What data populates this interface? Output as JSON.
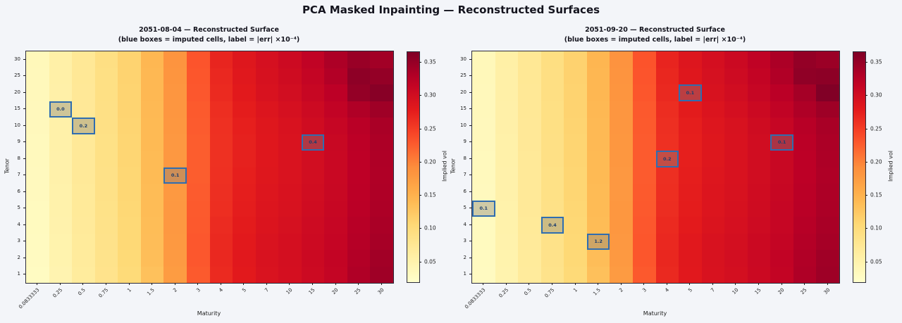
{
  "suptitle": "PCA Masked Inpainting — Reconstructed Surfaces",
  "colorbar": {
    "label": "Implied vol",
    "ticks": [
      "0.05",
      "0.10",
      "0.15",
      "0.20",
      "0.25",
      "0.30",
      "0.35"
    ],
    "vmin": 0.02,
    "vmax": 0.366
  },
  "styles": {
    "background": "#f3f5f9",
    "title_color": "#14141e",
    "colormap": "YlOrRd",
    "imputed_box_border": "#2f6db0",
    "imputed_box_fill": "rgba(125,125,125,0.38)",
    "imputed_label_color": "#1c3e6e"
  },
  "chart_data": [
    {
      "type": "heatmap",
      "date": "2051-08-04",
      "title": "2051-08-04  —  Reconstructed Surface",
      "subtitle": "(blue boxes = imputed cells, label = |err| ×10⁻⁴)",
      "xlabel": "Maturity",
      "ylabel": "Tenor",
      "colorbar_label": "Implied vol",
      "x_categories": [
        "0.0833333",
        "0.25",
        "0.5",
        "0.75",
        "1",
        "1.5",
        "2",
        "3",
        "4",
        "5",
        "7",
        "10",
        "15",
        "20",
        "25",
        "30"
      ],
      "y_categories": [
        "1",
        "2",
        "3",
        "4",
        "5",
        "6",
        "7",
        "8",
        "9",
        "10",
        "15",
        "20",
        "25",
        "30"
      ],
      "values": [
        [
          0.03,
          0.048,
          0.066,
          0.084,
          0.103,
          0.133,
          0.176,
          0.228,
          0.266,
          0.281,
          0.291,
          0.297,
          0.306,
          0.315,
          0.332,
          0.344
        ],
        [
          0.031,
          0.049,
          0.067,
          0.085,
          0.105,
          0.136,
          0.178,
          0.23,
          0.268,
          0.282,
          0.292,
          0.298,
          0.307,
          0.316,
          0.33,
          0.342
        ],
        [
          0.032,
          0.05,
          0.068,
          0.086,
          0.106,
          0.137,
          0.179,
          0.23,
          0.267,
          0.281,
          0.291,
          0.297,
          0.306,
          0.314,
          0.328,
          0.338
        ],
        [
          0.033,
          0.051,
          0.069,
          0.087,
          0.107,
          0.138,
          0.18,
          0.229,
          0.265,
          0.279,
          0.289,
          0.295,
          0.304,
          0.312,
          0.326,
          0.336
        ],
        [
          0.033,
          0.052,
          0.07,
          0.088,
          0.108,
          0.139,
          0.18,
          0.228,
          0.263,
          0.277,
          0.287,
          0.293,
          0.302,
          0.311,
          0.324,
          0.334
        ],
        [
          0.034,
          0.052,
          0.07,
          0.089,
          0.109,
          0.139,
          0.179,
          0.227,
          0.262,
          0.276,
          0.286,
          0.292,
          0.301,
          0.31,
          0.323,
          0.333
        ],
        [
          0.034,
          0.053,
          0.071,
          0.089,
          0.109,
          0.14,
          0.179,
          0.226,
          0.261,
          0.275,
          0.285,
          0.291,
          0.3,
          0.309,
          0.322,
          0.332
        ],
        [
          0.035,
          0.053,
          0.071,
          0.09,
          0.11,
          0.14,
          0.18,
          0.226,
          0.26,
          0.274,
          0.284,
          0.291,
          0.3,
          0.309,
          0.322,
          0.333
        ],
        [
          0.035,
          0.054,
          0.072,
          0.09,
          0.11,
          0.141,
          0.18,
          0.226,
          0.26,
          0.274,
          0.284,
          0.291,
          0.3,
          0.31,
          0.323,
          0.334
        ],
        [
          0.036,
          0.054,
          0.072,
          0.091,
          0.111,
          0.141,
          0.181,
          0.227,
          0.261,
          0.275,
          0.285,
          0.292,
          0.302,
          0.312,
          0.325,
          0.336
        ],
        [
          0.036,
          0.055,
          0.073,
          0.091,
          0.112,
          0.142,
          0.182,
          0.228,
          0.263,
          0.278,
          0.288,
          0.296,
          0.306,
          0.317,
          0.332,
          0.344
        ],
        [
          0.037,
          0.055,
          0.073,
          0.092,
          0.112,
          0.143,
          0.183,
          0.23,
          0.266,
          0.281,
          0.292,
          0.3,
          0.311,
          0.323,
          0.352,
          0.36
        ],
        [
          0.037,
          0.056,
          0.074,
          0.092,
          0.113,
          0.143,
          0.184,
          0.231,
          0.268,
          0.283,
          0.294,
          0.303,
          0.315,
          0.33,
          0.356,
          0.352
        ],
        [
          0.038,
          0.056,
          0.074,
          0.093,
          0.113,
          0.144,
          0.185,
          0.232,
          0.27,
          0.285,
          0.296,
          0.306,
          0.318,
          0.334,
          0.348,
          0.342
        ]
      ],
      "imputed_cells": [
        {
          "maturity": "0.25",
          "tenor": "15",
          "err_label": "0.0"
        },
        {
          "maturity": "0.5",
          "tenor": "10",
          "err_label": "0.2"
        },
        {
          "maturity": "2",
          "tenor": "7",
          "err_label": "0.1"
        },
        {
          "maturity": "15",
          "tenor": "9",
          "err_label": "0.4"
        }
      ]
    },
    {
      "type": "heatmap",
      "date": "2051-09-20",
      "title": "2051-09-20  —  Reconstructed Surface",
      "subtitle": "(blue boxes = imputed cells, label = |err| ×10⁻⁴)",
      "xlabel": "Maturity",
      "ylabel": "Tenor",
      "colorbar_label": "Implied vol",
      "x_categories": [
        "0.0833333",
        "0.25",
        "0.5",
        "0.75",
        "1",
        "1.5",
        "2",
        "3",
        "4",
        "5",
        "7",
        "10",
        "15",
        "20",
        "25",
        "30"
      ],
      "y_categories": [
        "1",
        "2",
        "3",
        "4",
        "5",
        "6",
        "7",
        "8",
        "9",
        "10",
        "15",
        "20",
        "25",
        "30"
      ],
      "values": [
        [
          0.031,
          0.049,
          0.067,
          0.085,
          0.104,
          0.134,
          0.177,
          0.229,
          0.267,
          0.282,
          0.292,
          0.298,
          0.307,
          0.316,
          0.333,
          0.345
        ],
        [
          0.032,
          0.05,
          0.068,
          0.086,
          0.106,
          0.137,
          0.179,
          0.231,
          0.269,
          0.283,
          0.293,
          0.299,
          0.308,
          0.317,
          0.331,
          0.343
        ],
        [
          0.033,
          0.051,
          0.069,
          0.087,
          0.107,
          0.138,
          0.18,
          0.231,
          0.268,
          0.282,
          0.292,
          0.298,
          0.307,
          0.315,
          0.329,
          0.339
        ],
        [
          0.033,
          0.052,
          0.07,
          0.088,
          0.108,
          0.139,
          0.181,
          0.23,
          0.266,
          0.28,
          0.29,
          0.296,
          0.305,
          0.313,
          0.327,
          0.337
        ],
        [
          0.034,
          0.052,
          0.071,
          0.089,
          0.109,
          0.14,
          0.181,
          0.229,
          0.264,
          0.278,
          0.288,
          0.294,
          0.303,
          0.312,
          0.325,
          0.335
        ],
        [
          0.034,
          0.053,
          0.071,
          0.09,
          0.11,
          0.14,
          0.18,
          0.228,
          0.263,
          0.277,
          0.287,
          0.293,
          0.302,
          0.311,
          0.324,
          0.334
        ],
        [
          0.035,
          0.053,
          0.072,
          0.09,
          0.11,
          0.141,
          0.18,
          0.227,
          0.262,
          0.276,
          0.286,
          0.292,
          0.301,
          0.31,
          0.323,
          0.333
        ],
        [
          0.035,
          0.054,
          0.072,
          0.091,
          0.111,
          0.141,
          0.181,
          0.227,
          0.261,
          0.275,
          0.285,
          0.292,
          0.301,
          0.31,
          0.323,
          0.334
        ],
        [
          0.036,
          0.054,
          0.073,
          0.091,
          0.111,
          0.142,
          0.181,
          0.227,
          0.261,
          0.275,
          0.285,
          0.292,
          0.301,
          0.311,
          0.324,
          0.335
        ],
        [
          0.036,
          0.055,
          0.073,
          0.092,
          0.112,
          0.142,
          0.182,
          0.228,
          0.262,
          0.276,
          0.286,
          0.293,
          0.303,
          0.313,
          0.326,
          0.337
        ],
        [
          0.037,
          0.055,
          0.074,
          0.092,
          0.113,
          0.143,
          0.183,
          0.229,
          0.264,
          0.279,
          0.289,
          0.297,
          0.307,
          0.318,
          0.333,
          0.345
        ],
        [
          0.037,
          0.056,
          0.074,
          0.093,
          0.113,
          0.144,
          0.184,
          0.231,
          0.267,
          0.282,
          0.293,
          0.301,
          0.312,
          0.324,
          0.34,
          0.365
        ],
        [
          0.038,
          0.056,
          0.075,
          0.093,
          0.114,
          0.144,
          0.185,
          0.232,
          0.269,
          0.284,
          0.295,
          0.304,
          0.316,
          0.331,
          0.355,
          0.357
        ],
        [
          0.038,
          0.057,
          0.075,
          0.094,
          0.114,
          0.145,
          0.186,
          0.233,
          0.271,
          0.286,
          0.297,
          0.307,
          0.319,
          0.335,
          0.352,
          0.347
        ]
      ],
      "imputed_cells": [
        {
          "maturity": "0.0833333",
          "tenor": "5",
          "err_label": "0.1"
        },
        {
          "maturity": "0.75",
          "tenor": "4",
          "err_label": "0.4"
        },
        {
          "maturity": "1.5",
          "tenor": "3",
          "err_label": "1.2"
        },
        {
          "maturity": "4",
          "tenor": "8",
          "err_label": "0.2"
        },
        {
          "maturity": "5",
          "tenor": "20",
          "err_label": "0.1"
        },
        {
          "maturity": "20",
          "tenor": "9",
          "err_label": "0.1"
        }
      ]
    }
  ]
}
